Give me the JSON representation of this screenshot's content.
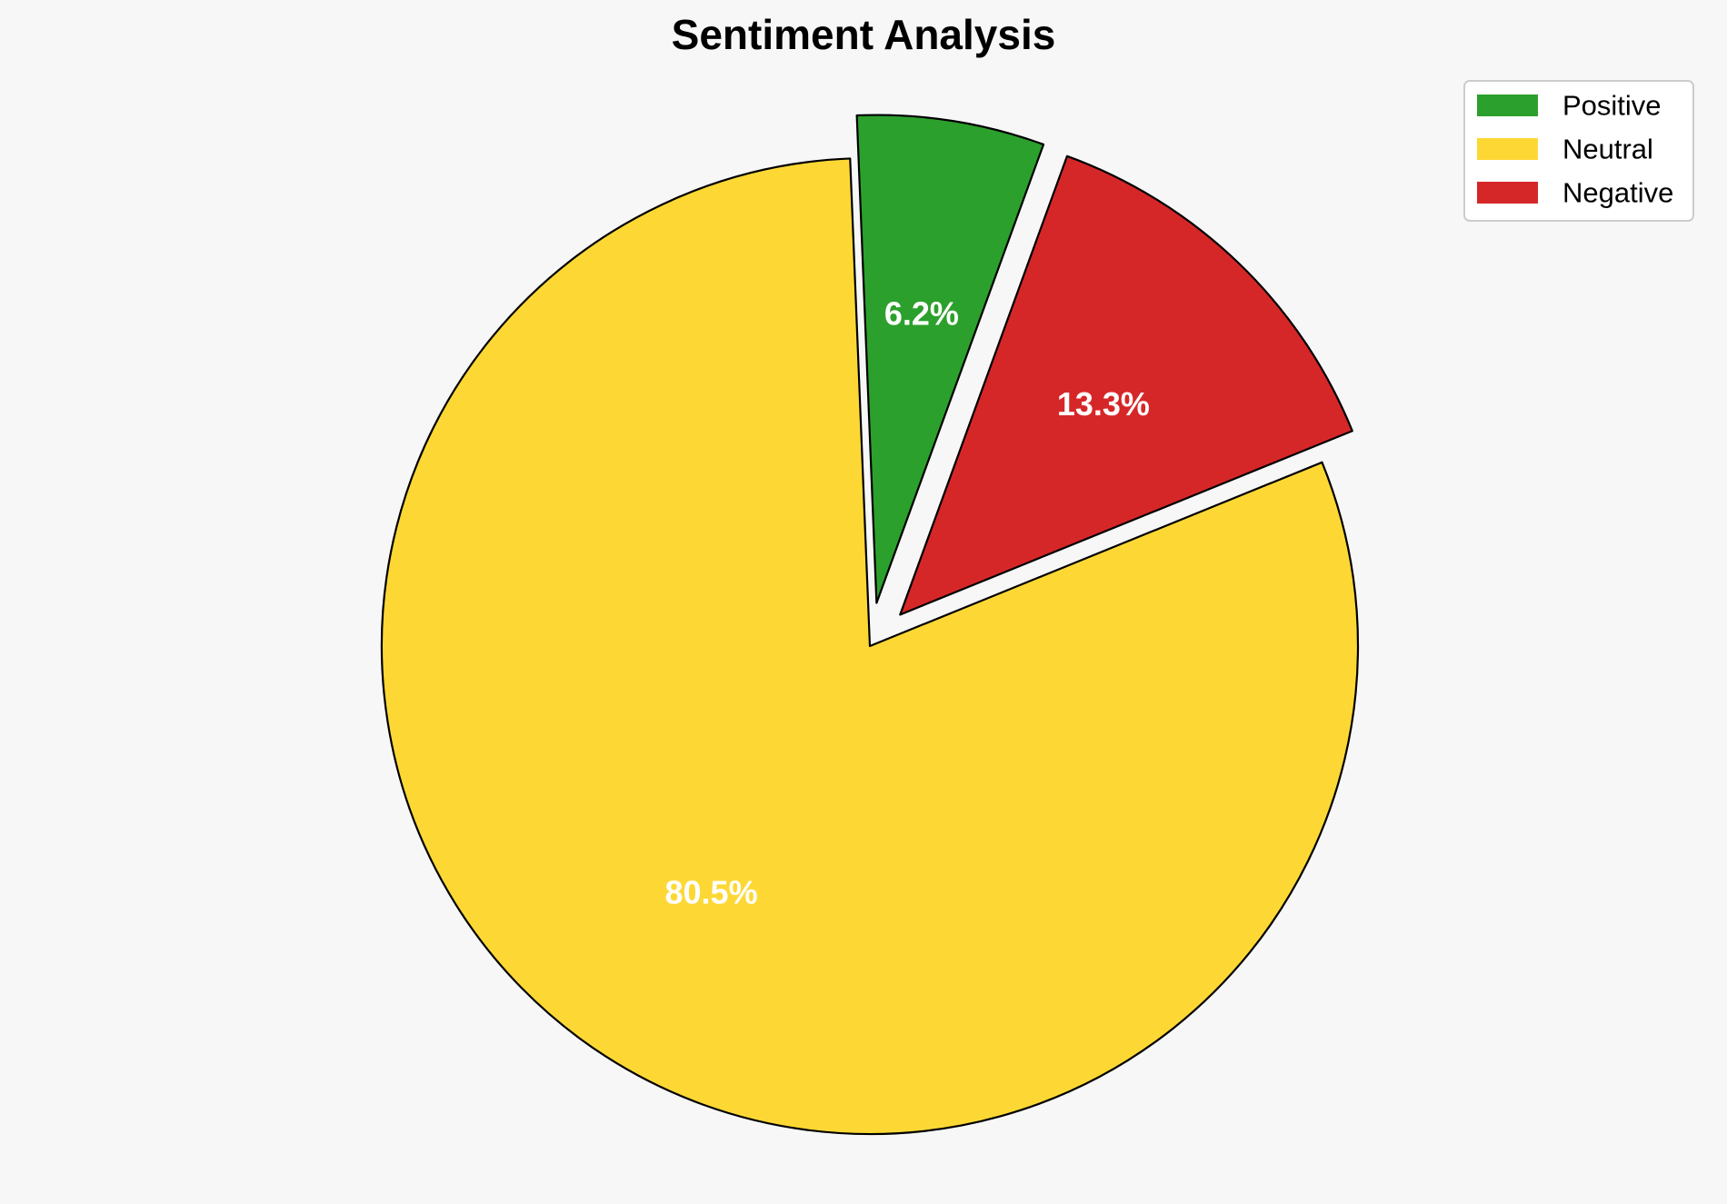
{
  "chart_data": {
    "type": "pie",
    "title": "Sentiment Analysis",
    "categories": [
      "Positive",
      "Neutral",
      "Negative"
    ],
    "values": [
      6.2,
      80.5,
      13.3
    ],
    "labels": [
      "6.2%",
      "80.5%",
      "13.3%"
    ],
    "colors": [
      "#2ca02c",
      "#fdd835",
      "#d62728"
    ],
    "exploded": [
      "Positive",
      "Negative"
    ],
    "legend_position": "top-right",
    "slice_edge_color": "#000000",
    "label_color": "#ffffff"
  }
}
